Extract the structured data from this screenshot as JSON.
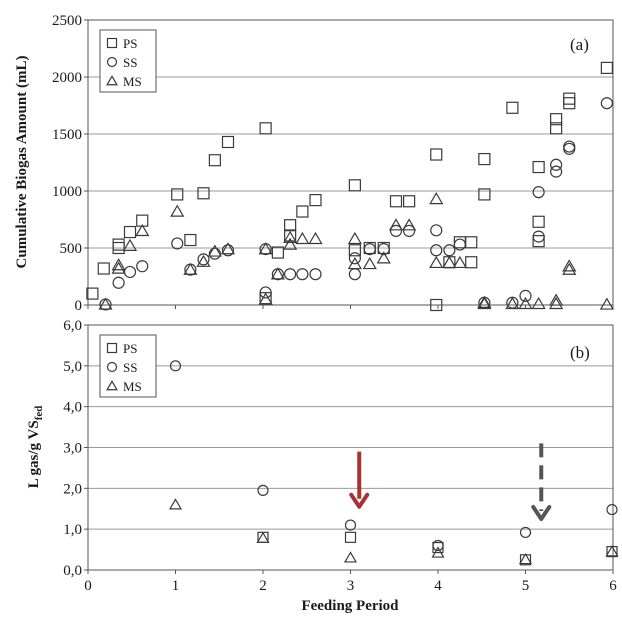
{
  "colors": {
    "marker": "#3a3a3a",
    "grid": "#9a9a9a",
    "axis": "#555555",
    "arrow_solid": "#a83232",
    "arrow_dashed": "#555555"
  },
  "chart_data": [
    {
      "type": "scatter",
      "panel_tag": "(a)",
      "ylabel": "Cumulative Biogas Amount (mL)",
      "xlim": [
        0,
        6
      ],
      "ylim": [
        0,
        2500
      ],
      "xticks": [
        "0",
        "1",
        "2",
        "3",
        "4",
        "5",
        "6"
      ],
      "yticks": [
        "0",
        "500",
        "1000",
        "1500",
        "2000",
        "2500"
      ],
      "ytick_values": [
        0,
        500,
        1000,
        1500,
        2000,
        2500
      ],
      "legend": [
        "PS",
        "SS",
        "MS"
      ],
      "legend_placement": "top-left",
      "grid": "horizontal",
      "series": [
        {
          "name": "PS",
          "marker": "square",
          "points": [
            [
              0.05,
              100
            ],
            [
              0.18,
              320
            ],
            [
              0.35,
              500
            ],
            [
              0.35,
              530
            ],
            [
              0.48,
              640
            ],
            [
              0.62,
              740
            ],
            [
              1.02,
              970
            ],
            [
              1.17,
              570
            ],
            [
              1.32,
              980
            ],
            [
              1.45,
              1270
            ],
            [
              1.6,
              1430
            ],
            [
              2.03,
              1550
            ],
            [
              2.03,
              60
            ],
            [
              2.17,
              460
            ],
            [
              2.31,
              700
            ],
            [
              2.31,
              610
            ],
            [
              2.45,
              820
            ],
            [
              2.6,
              920
            ],
            [
              3.05,
              1050
            ],
            [
              3.05,
              480
            ],
            [
              3.22,
              500
            ],
            [
              3.38,
              500
            ],
            [
              3.52,
              910
            ],
            [
              3.67,
              910
            ],
            [
              3.98,
              1320
            ],
            [
              3.98,
              0
            ],
            [
              4.13,
              375
            ],
            [
              4.25,
              550
            ],
            [
              4.38,
              550
            ],
            [
              4.38,
              375
            ],
            [
              4.53,
              970
            ],
            [
              4.53,
              1280
            ],
            [
              4.85,
              1730
            ],
            [
              5.15,
              1210
            ],
            [
              5.15,
              730
            ],
            [
              5.15,
              560
            ],
            [
              5.35,
              1630
            ],
            [
              5.35,
              1550
            ],
            [
              5.5,
              1810
            ],
            [
              5.5,
              1770
            ],
            [
              5.93,
              2080
            ]
          ]
        },
        {
          "name": "SS",
          "marker": "circle",
          "points": [
            [
              0.2,
              5
            ],
            [
              0.35,
              195
            ],
            [
              0.48,
              290
            ],
            [
              0.62,
              340
            ],
            [
              1.02,
              540
            ],
            [
              1.17,
              310
            ],
            [
              1.32,
              400
            ],
            [
              1.45,
              450
            ],
            [
              1.6,
              480
            ],
            [
              2.03,
              490
            ],
            [
              2.03,
              110
            ],
            [
              2.17,
              270
            ],
            [
              2.31,
              270
            ],
            [
              2.45,
              270
            ],
            [
              2.6,
              270
            ],
            [
              3.05,
              410
            ],
            [
              3.05,
              270
            ],
            [
              3.22,
              490
            ],
            [
              3.38,
              490
            ],
            [
              3.52,
              650
            ],
            [
              3.67,
              650
            ],
            [
              3.98,
              655
            ],
            [
              3.98,
              480
            ],
            [
              4.13,
              480
            ],
            [
              4.25,
              530
            ],
            [
              4.53,
              20
            ],
            [
              4.85,
              20
            ],
            [
              5.0,
              80
            ],
            [
              5.15,
              990
            ],
            [
              5.15,
              600
            ],
            [
              5.35,
              1230
            ],
            [
              5.35,
              1170
            ],
            [
              5.5,
              1390
            ],
            [
              5.5,
              1370
            ],
            [
              5.93,
              1770
            ]
          ]
        },
        {
          "name": "MS",
          "marker": "triangle",
          "points": [
            [
              0.2,
              5
            ],
            [
              0.35,
              350
            ],
            [
              0.35,
              320
            ],
            [
              0.48,
              520
            ],
            [
              0.62,
              650
            ],
            [
              1.02,
              820
            ],
            [
              1.17,
              310
            ],
            [
              1.32,
              380
            ],
            [
              1.45,
              470
            ],
            [
              1.6,
              490
            ],
            [
              2.03,
              490
            ],
            [
              2.03,
              50
            ],
            [
              2.17,
              270
            ],
            [
              2.31,
              590
            ],
            [
              2.31,
              530
            ],
            [
              2.45,
              580
            ],
            [
              2.6,
              580
            ],
            [
              3.05,
              580
            ],
            [
              3.05,
              360
            ],
            [
              3.22,
              360
            ],
            [
              3.38,
              410
            ],
            [
              3.52,
              700
            ],
            [
              3.67,
              700
            ],
            [
              3.98,
              930
            ],
            [
              3.98,
              370
            ],
            [
              4.13,
              370
            ],
            [
              4.25,
              370
            ],
            [
              4.53,
              10
            ],
            [
              4.53,
              20
            ],
            [
              4.85,
              10
            ],
            [
              5.0,
              10
            ],
            [
              5.15,
              10
            ],
            [
              5.35,
              10
            ],
            [
              5.35,
              40
            ],
            [
              5.5,
              340
            ],
            [
              5.5,
              310
            ],
            [
              5.93,
              5
            ]
          ]
        }
      ]
    },
    {
      "type": "scatter",
      "panel_tag": "(b)",
      "ylabel": "L gas/g VS",
      "ylabel_subscript": "fed",
      "xlabel": "Feeding Period",
      "xlim": [
        0,
        6
      ],
      "ylim": [
        0,
        6
      ],
      "xticks": [
        "0",
        "1",
        "2",
        "3",
        "4",
        "5",
        "6"
      ],
      "yticks": [
        "0,0",
        "1,0",
        "2,0",
        "3,0",
        "4,0",
        "5,0",
        "6,0"
      ],
      "ytick_values": [
        0,
        1,
        2,
        3,
        4,
        5,
        6
      ],
      "legend": [
        "PS",
        "SS",
        "MS"
      ],
      "legend_placement": "top-left",
      "grid": "horizontal",
      "series": [
        {
          "name": "PS",
          "marker": "square",
          "points": [
            [
              2.0,
              0.8
            ],
            [
              3.0,
              0.8
            ],
            [
              4.0,
              0.55
            ],
            [
              5.0,
              0.25
            ],
            [
              6.0,
              0.45
            ]
          ]
        },
        {
          "name": "SS",
          "marker": "circle",
          "points": [
            [
              1.0,
              5.0
            ],
            [
              2.0,
              1.95
            ],
            [
              3.0,
              1.1
            ],
            [
              4.0,
              0.6
            ],
            [
              5.0,
              0.92
            ],
            [
              6.0,
              1.48
            ]
          ]
        },
        {
          "name": "MS",
          "marker": "triangle",
          "points": [
            [
              1.0,
              1.6
            ],
            [
              2.0,
              0.78
            ],
            [
              3.0,
              0.3
            ],
            [
              4.0,
              0.42
            ],
            [
              5.0,
              0.26
            ],
            [
              6.0,
              0.45
            ]
          ]
        }
      ],
      "arrows": [
        {
          "style": "solid",
          "x": 3.1,
          "y_from": 2.9,
          "y_to": 1.55
        },
        {
          "style": "dashed",
          "x": 5.18,
          "y_from": 3.1,
          "y_to": 1.25
        }
      ]
    }
  ]
}
